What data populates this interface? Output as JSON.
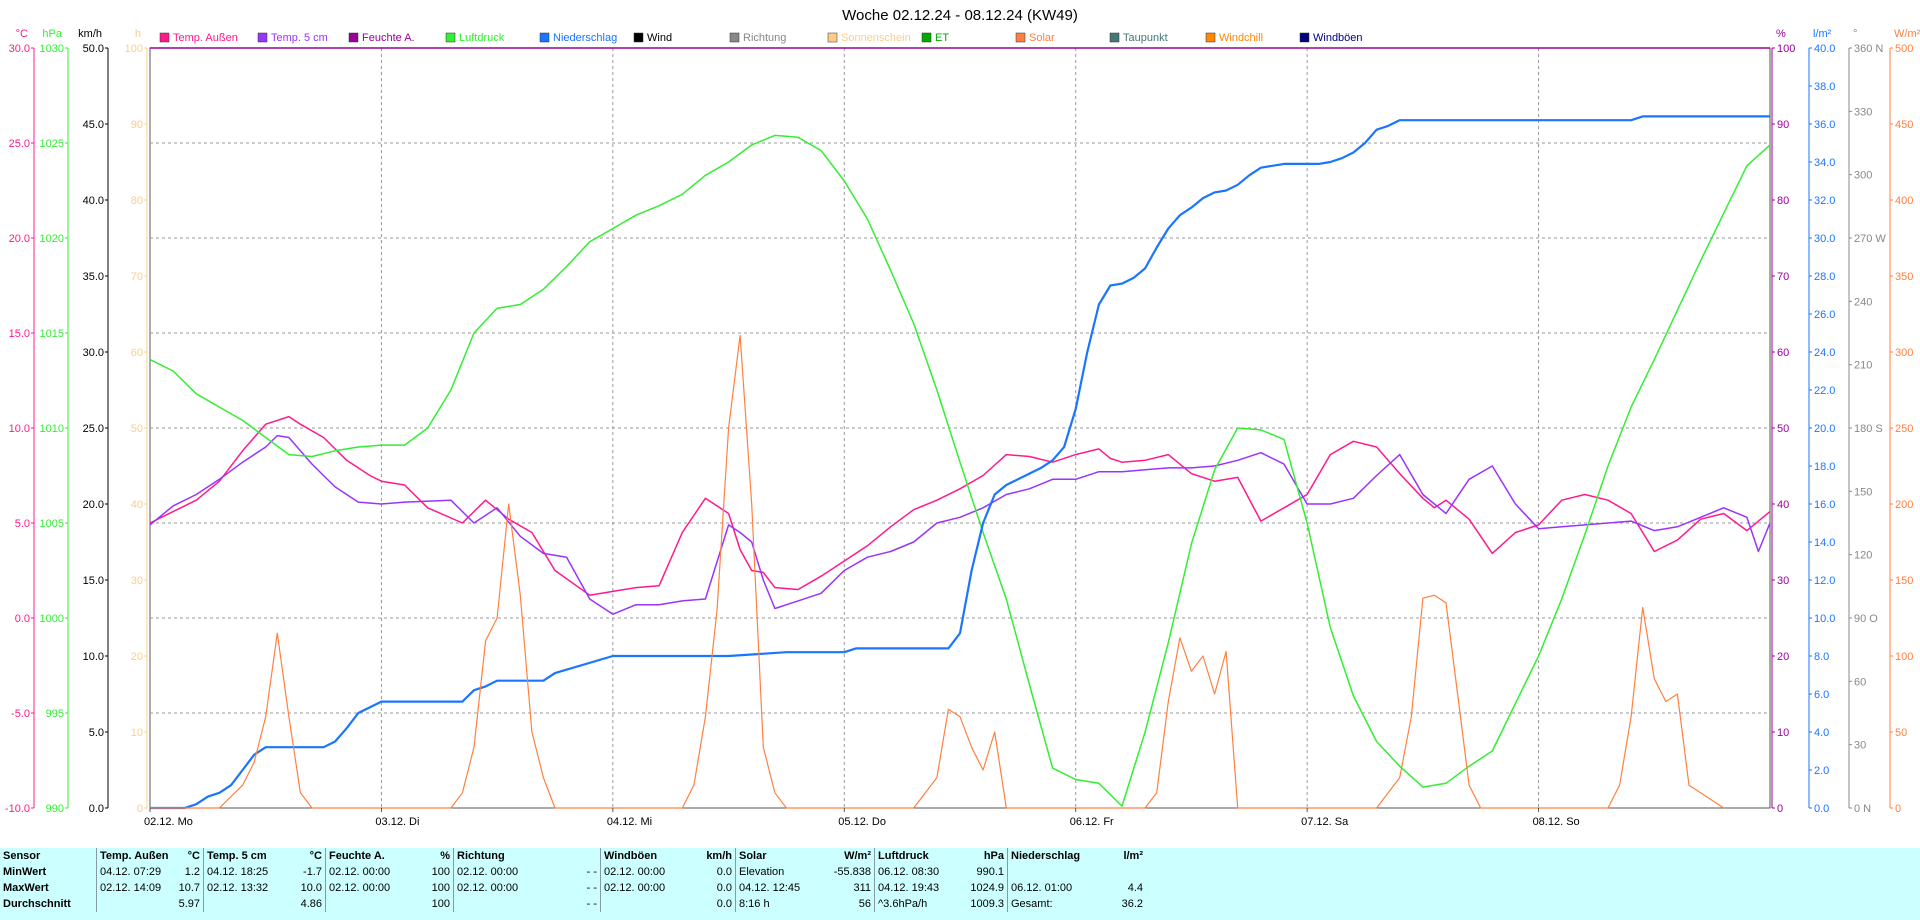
{
  "title": "Woche 02.12.24 - 08.12.24 (KW49)",
  "legend": [
    {
      "label": "Temp. Außen",
      "color": "#ff1a8c"
    },
    {
      "label": "Temp. 5 cm",
      "color": "#9933ff"
    },
    {
      "label": "Feuchte A.",
      "color": "#990099"
    },
    {
      "label": "Luftdruck",
      "color": "#33ee33"
    },
    {
      "label": "Niederschlag",
      "color": "#1a75ff"
    },
    {
      "label": "Wind",
      "color": "#000000"
    },
    {
      "label": "Richtung",
      "color": "#888888"
    },
    {
      "label": "Sonnenschein",
      "color": "#ffcc88"
    },
    {
      "label": "ET",
      "color": "#00aa00"
    },
    {
      "label": "Solar",
      "color": "#ff8040"
    },
    {
      "label": "Taupunkt",
      "color": "#447777"
    },
    {
      "label": "Windchill",
      "color": "#ff8800"
    },
    {
      "label": "Windböen",
      "color": "#000080"
    }
  ],
  "left_axes": [
    {
      "unit": "°C",
      "color": "#ff1a8c",
      "ticks": [
        "30.0",
        "25.0",
        "20.0",
        "15.0",
        "10.0",
        "5.0",
        "0.0",
        "-5.0",
        "-10.0"
      ]
    },
    {
      "unit": "hPa",
      "color": "#33ee33",
      "ticks": [
        "1030",
        "1025",
        "1020",
        "1015",
        "1010",
        "1005",
        "1000",
        "995",
        "990"
      ]
    },
    {
      "unit": "km/h",
      "color": "#000000",
      "ticks": [
        "50.0",
        "45.0",
        "40.0",
        "35.0",
        "30.0",
        "25.0",
        "20.0",
        "15.0",
        "10.0",
        "5.0",
        "0.0"
      ]
    },
    {
      "unit": "h",
      "color": "#ffcc88",
      "ticks": [
        "100",
        "90",
        "80",
        "70",
        "60",
        "50",
        "40",
        "30",
        "20",
        "10",
        "0"
      ]
    }
  ],
  "right_axes": [
    {
      "unit": "%",
      "color": "#990099",
      "ticks": [
        "100",
        "90",
        "80",
        "70",
        "60",
        "50",
        "40",
        "30",
        "20",
        "10",
        "0"
      ]
    },
    {
      "unit": "l/m²",
      "color": "#1a75ff",
      "ticks": [
        "40.0",
        "38.0",
        "36.0",
        "34.0",
        "32.0",
        "30.0",
        "28.0",
        "26.0",
        "24.0",
        "22.0",
        "20.0",
        "18.0",
        "16.0",
        "14.0",
        "12.0",
        "10.0",
        "8.0",
        "6.0",
        "4.0",
        "2.0",
        "0.0"
      ]
    },
    {
      "unit": "°",
      "color": "#888888",
      "ticks": [
        "360 N",
        "330",
        "300",
        "270 W",
        "240",
        "210",
        "180 S",
        "150",
        "120",
        "90 O",
        "60",
        "30",
        "0 N"
      ]
    },
    {
      "unit": "W/m²",
      "color": "#ff8040",
      "ticks": [
        "500",
        "450",
        "400",
        "350",
        "300",
        "250",
        "200",
        "150",
        "100",
        "50",
        "0"
      ]
    }
  ],
  "x_labels": [
    "02.12.  Mo",
    "03.12.  Di",
    "04.12.  Mi",
    "05.12.  Do",
    "06.12.  Fr",
    "07.12.  Sa",
    "08.12.  So"
  ],
  "chart_data": {
    "type": "line",
    "x_unit": "days since 02.12.24 00:00",
    "x_range": [
      0,
      7
    ],
    "series": [
      {
        "name": "Temp. Außen",
        "unit": "°C",
        "axis_range": [
          -10,
          30
        ],
        "color": "#ff1a8c",
        "x": [
          0,
          0.1,
          0.2,
          0.3,
          0.4,
          0.5,
          0.6,
          0.65,
          0.75,
          0.85,
          0.95,
          1.0,
          1.1,
          1.2,
          1.35,
          1.45,
          1.55,
          1.65,
          1.75,
          1.9,
          2.0,
          2.1,
          2.2,
          2.3,
          2.4,
          2.5,
          2.55,
          2.6,
          2.65,
          2.7,
          2.8,
          2.9,
          3.0,
          3.1,
          3.2,
          3.3,
          3.4,
          3.5,
          3.6,
          3.7,
          3.8,
          3.9,
          4.0,
          4.1,
          4.15,
          4.2,
          4.3,
          4.4,
          4.5,
          4.6,
          4.7,
          4.8,
          4.9,
          5.0,
          5.1,
          5.2,
          5.3,
          5.4,
          5.5,
          5.55,
          5.6,
          5.7,
          5.8,
          5.9,
          6.0,
          6.1,
          6.2,
          6.3,
          6.4,
          6.5,
          6.6,
          6.7,
          6.8,
          6.9,
          7.0
        ],
        "values": [
          5.0,
          5.6,
          6.2,
          7.2,
          8.8,
          10.2,
          10.6,
          10.2,
          9.5,
          8.3,
          7.5,
          7.2,
          7.0,
          5.8,
          5.0,
          6.2,
          5.2,
          4.5,
          2.5,
          1.2,
          1.4,
          1.6,
          1.7,
          4.5,
          6.3,
          5.5,
          3.6,
          2.5,
          2.4,
          1.6,
          1.5,
          2.2,
          3.0,
          3.8,
          4.8,
          5.7,
          6.2,
          6.8,
          7.5,
          8.6,
          8.5,
          8.2,
          8.6,
          8.9,
          8.4,
          8.2,
          8.3,
          8.6,
          7.6,
          7.2,
          7.4,
          5.1,
          5.8,
          6.5,
          8.6,
          9.3,
          9.0,
          7.6,
          6.3,
          5.8,
          6.2,
          5.2,
          3.4,
          4.5,
          4.9,
          6.2,
          6.5,
          6.2,
          5.5,
          3.5,
          4.1,
          5.2,
          5.5,
          4.6,
          5.6
        ]
      },
      {
        "name": "Temp. 5 cm",
        "unit": "°C",
        "axis_range": [
          -10,
          30
        ],
        "color": "#9933ff",
        "x": [
          0,
          0.1,
          0.2,
          0.3,
          0.4,
          0.5,
          0.55,
          0.6,
          0.7,
          0.8,
          0.9,
          1.0,
          1.1,
          1.3,
          1.4,
          1.5,
          1.6,
          1.7,
          1.8,
          1.9,
          2.0,
          2.1,
          2.2,
          2.3,
          2.4,
          2.5,
          2.55,
          2.6,
          2.65,
          2.7,
          2.8,
          2.9,
          3.0,
          3.1,
          3.2,
          3.3,
          3.4,
          3.5,
          3.6,
          3.7,
          3.8,
          3.9,
          4.0,
          4.1,
          4.2,
          4.3,
          4.4,
          4.5,
          4.6,
          4.7,
          4.8,
          4.9,
          5.0,
          5.1,
          5.2,
          5.3,
          5.4,
          5.5,
          5.6,
          5.7,
          5.8,
          5.9,
          6.0,
          6.1,
          6.2,
          6.3,
          6.4,
          6.5,
          6.6,
          6.7,
          6.8,
          6.9,
          6.95,
          7.0
        ],
        "values": [
          4.9,
          5.9,
          6.5,
          7.3,
          8.2,
          9.0,
          9.6,
          9.5,
          8.1,
          6.9,
          6.1,
          6.0,
          6.1,
          6.2,
          5.0,
          5.8,
          4.3,
          3.4,
          3.2,
          1.0,
          0.2,
          0.7,
          0.7,
          0.9,
          1.0,
          4.9,
          4.5,
          4.0,
          2.0,
          0.5,
          0.9,
          1.3,
          2.5,
          3.2,
          3.5,
          4.0,
          5.0,
          5.3,
          5.8,
          6.5,
          6.8,
          7.3,
          7.3,
          7.7,
          7.7,
          7.8,
          7.9,
          7.9,
          8.0,
          8.3,
          8.7,
          8.1,
          6.0,
          6.0,
          6.3,
          7.5,
          8.6,
          6.5,
          5.5,
          7.3,
          8.0,
          6.0,
          4.7,
          4.8,
          4.9,
          5.0,
          5.1,
          4.6,
          4.8,
          5.3,
          5.8,
          5.3,
          3.5,
          5.0
        ]
      },
      {
        "name": "Feuchte A.",
        "unit": "%",
        "axis_range": [
          0,
          100
        ],
        "color": "#990099",
        "x": [
          0,
          7
        ],
        "values": [
          100,
          100
        ]
      },
      {
        "name": "Luftdruck",
        "unit": "hPa",
        "axis_range": [
          990,
          1030
        ],
        "color": "#33ee33",
        "x": [
          0,
          0.1,
          0.2,
          0.3,
          0.4,
          0.5,
          0.6,
          0.7,
          0.8,
          0.9,
          1.0,
          1.1,
          1.2,
          1.3,
          1.4,
          1.5,
          1.6,
          1.7,
          1.8,
          1.9,
          2.0,
          2.1,
          2.2,
          2.3,
          2.4,
          2.5,
          2.6,
          2.7,
          2.8,
          2.9,
          3.0,
          3.1,
          3.2,
          3.3,
          3.4,
          3.5,
          3.6,
          3.7,
          3.8,
          3.9,
          4.0,
          4.1,
          4.2,
          4.3,
          4.4,
          4.5,
          4.6,
          4.7,
          4.8,
          4.9,
          5.0,
          5.1,
          5.2,
          5.3,
          5.4,
          5.5,
          5.6,
          5.7,
          5.8,
          5.9,
          6.0,
          6.1,
          6.2,
          6.3,
          6.4,
          6.5,
          6.6,
          6.7,
          6.8,
          6.9,
          7.0
        ],
        "values": [
          1013.6,
          1013.0,
          1011.8,
          1011.1,
          1010.4,
          1009.5,
          1008.6,
          1008.5,
          1008.8,
          1009.0,
          1009.1,
          1009.1,
          1010.0,
          1012.0,
          1015.0,
          1016.3,
          1016.5,
          1017.3,
          1018.5,
          1019.8,
          1020.5,
          1021.2,
          1021.7,
          1022.3,
          1023.3,
          1024.0,
          1024.9,
          1025.4,
          1025.3,
          1024.6,
          1023.0,
          1021.0,
          1018.3,
          1015.5,
          1012.0,
          1008.2,
          1004.5,
          1001.0,
          996.5,
          992.1,
          991.5,
          991.3,
          990.1,
          994.0,
          998.7,
          1003.9,
          1007.8,
          1010.0,
          1009.9,
          1009.4,
          1005.0,
          999.5,
          995.9,
          993.5,
          992.2,
          991.1,
          991.3,
          992.2,
          993.0,
          995.5,
          998.0,
          1001.0,
          1004.4,
          1008.0,
          1011.1,
          1013.6,
          1016.2,
          1018.8,
          1021.3,
          1023.8,
          1024.9
        ]
      },
      {
        "name": "Niederschlag",
        "unit": "l/m²",
        "axis_range": [
          0,
          40
        ],
        "color": "#1a75ff",
        "x": [
          0,
          0.15,
          0.2,
          0.25,
          0.3,
          0.35,
          0.4,
          0.45,
          0.5,
          0.55,
          0.6,
          0.65,
          0.7,
          0.75,
          0.8,
          0.85,
          0.9,
          1.0,
          1.05,
          1.1,
          1.15,
          1.2,
          1.25,
          1.3,
          1.35,
          1.4,
          1.45,
          1.5,
          1.55,
          1.6,
          1.65,
          1.7,
          1.75,
          2.0,
          2.25,
          2.3,
          2.5,
          2.75,
          3.0,
          3.05,
          3.2,
          3.45,
          3.5,
          3.55,
          3.6,
          3.65,
          3.7,
          3.75,
          3.8,
          3.85,
          3.9,
          3.95,
          4.0,
          4.05,
          4.1,
          4.15,
          4.2,
          4.25,
          4.3,
          4.35,
          4.4,
          4.45,
          4.5,
          4.55,
          4.6,
          4.65,
          4.7,
          4.75,
          4.8,
          4.85,
          4.9,
          4.95,
          5.0,
          5.05,
          5.1,
          5.15,
          5.2,
          5.25,
          5.3,
          5.35,
          5.4,
          5.45,
          5.5,
          5.6,
          5.8,
          6.0,
          6.2,
          6.4,
          6.45,
          6.6,
          6.8,
          7.0
        ],
        "values": [
          0,
          0,
          0.2,
          0.6,
          0.8,
          1.2,
          2.0,
          2.8,
          3.2,
          3.2,
          3.2,
          3.2,
          3.2,
          3.2,
          3.5,
          4.2,
          5.0,
          5.6,
          5.6,
          5.6,
          5.6,
          5.6,
          5.6,
          5.6,
          5.6,
          6.2,
          6.4,
          6.7,
          6.7,
          6.7,
          6.7,
          6.7,
          7.1,
          8.0,
          8.0,
          8.0,
          8.0,
          8.2,
          8.2,
          8.4,
          8.4,
          8.4,
          9.2,
          12.5,
          15.0,
          16.5,
          17.0,
          17.3,
          17.6,
          17.9,
          18.3,
          19.0,
          21.0,
          24.0,
          26.5,
          27.5,
          27.6,
          27.9,
          28.4,
          29.5,
          30.5,
          31.2,
          31.6,
          32.1,
          32.4,
          32.5,
          32.8,
          33.3,
          33.7,
          33.8,
          33.9,
          33.9,
          33.9,
          33.9,
          34.0,
          34.2,
          34.5,
          35.0,
          35.7,
          35.9,
          36.2,
          36.2,
          36.2,
          36.2,
          36.2,
          36.2,
          36.2,
          36.2,
          36.4,
          36.4,
          36.4,
          36.4
        ]
      },
      {
        "name": "Solar",
        "unit": "W/m²",
        "axis_range": [
          0,
          500
        ],
        "color": "#ff8040",
        "x": [
          0,
          0.3,
          0.4,
          0.45,
          0.5,
          0.55,
          0.6,
          0.65,
          0.7,
          0.9,
          1.3,
          1.35,
          1.4,
          1.45,
          1.5,
          1.55,
          1.6,
          1.65,
          1.7,
          1.75,
          1.8,
          2.3,
          2.35,
          2.4,
          2.45,
          2.5,
          2.55,
          2.6,
          2.65,
          2.7,
          2.75,
          3.3,
          3.4,
          3.45,
          3.5,
          3.55,
          3.6,
          3.65,
          3.7,
          4.3,
          4.35,
          4.4,
          4.45,
          4.5,
          4.55,
          4.6,
          4.65,
          4.7,
          5.3,
          5.4,
          5.45,
          5.5,
          5.55,
          5.6,
          5.65,
          5.7,
          5.75,
          6.3,
          6.35,
          6.4,
          6.45,
          6.5,
          6.55,
          6.6,
          6.65,
          6.7,
          6.8
        ],
        "values": [
          0,
          0,
          15,
          30,
          60,
          115,
          60,
          10,
          0,
          0,
          0,
          10,
          40,
          110,
          125,
          200,
          140,
          50,
          20,
          0,
          0,
          0,
          15,
          60,
          130,
          250,
          311,
          200,
          40,
          10,
          0,
          0,
          20,
          65,
          60,
          40,
          25,
          50,
          0,
          0,
          10,
          70,
          112,
          90,
          100,
          75,
          103,
          0,
          0,
          20,
          60,
          138,
          140,
          135,
          75,
          15,
          0,
          0,
          15,
          60,
          132,
          85,
          70,
          75,
          15,
          10,
          0
        ]
      }
    ]
  },
  "stats": {
    "headers": [
      "Sensor",
      "Temp. Außen",
      "°C",
      "Temp. 5 cm",
      "°C",
      "Feuchte A.",
      "%",
      "Richtung",
      "",
      "Windböen",
      "km/h",
      "Solar",
      "W/m²",
      "Luftdruck",
      "hPa",
      "Niederschlag",
      "l/m²"
    ],
    "rows": [
      [
        "MinWert",
        "04.12.  07:29",
        "1.2",
        "04.12.  18:25",
        "-1.7",
        "02.12.  00:00",
        "100",
        "02.12.  00:00",
        "- -",
        "02.12.  00:00",
        "0.0",
        "Elevation",
        "-55.838",
        "06.12.  08:30",
        "990.1",
        "",
        ""
      ],
      [
        "MaxWert",
        "02.12.  14:09",
        "10.7",
        "02.12.  13:32",
        "10.0",
        "02.12.  00:00",
        "100",
        "02.12.  00:00",
        "- -",
        "02.12.  00:00",
        "0.0",
        "04.12.  12:45",
        "311",
        "04.12.  19:43",
        "1024.9",
        "06.12.  01:00",
        "4.4"
      ],
      [
        "Durchschnitt",
        "",
        "5.97",
        "",
        "4.86",
        "",
        "100",
        "",
        "- -",
        "",
        "0.0",
        "8:16 h",
        "56",
        "^3.6hPa/h",
        "1009.3",
        "Gesamt:",
        "36.2"
      ]
    ]
  }
}
